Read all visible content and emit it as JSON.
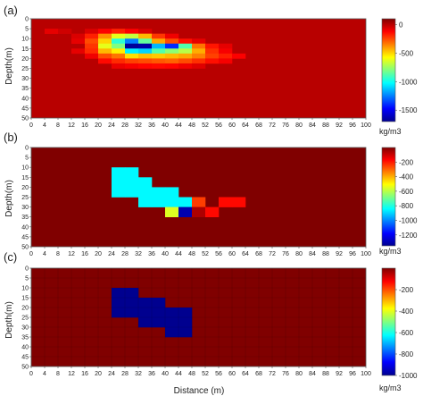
{
  "chart_data": [
    {
      "type": "heatmap",
      "panel_label": "(a)",
      "ylabel": "Depth(m)",
      "xlabel": "",
      "x_ticks": [
        "0",
        "4",
        "8",
        "12",
        "16",
        "20",
        "24",
        "28",
        "32",
        "36",
        "40",
        "44",
        "48",
        "52",
        "56",
        "60",
        "64",
        "68",
        "72",
        "76",
        "80",
        "84",
        "88",
        "92",
        "96",
        "100"
      ],
      "y_ticks": [
        "0",
        "5",
        "10",
        "15",
        "20",
        "25",
        "30",
        "35",
        "40",
        "45",
        "50"
      ],
      "xlim": [
        0,
        100
      ],
      "ylim": [
        0,
        50
      ],
      "y_inverted": true,
      "cell_size": [
        4,
        2.5
      ],
      "background_value": 0,
      "colorbar": {
        "range": [
          -1700,
          100
        ],
        "ticks": [
          "0",
          "-500",
          "-1000",
          "-1500"
        ],
        "unit": "kg/m3"
      },
      "cells": [
        {
          "x": 4,
          "y": 5,
          "v": -80
        },
        {
          "x": 8,
          "y": 5,
          "v": -40
        },
        {
          "x": 16,
          "y": 5,
          "v": -60
        },
        {
          "x": 20,
          "y": 5,
          "v": -120
        },
        {
          "x": 24,
          "y": 5,
          "v": -180
        },
        {
          "x": 28,
          "y": 5,
          "v": -120
        },
        {
          "x": 32,
          "y": 5,
          "v": -60
        },
        {
          "x": 12,
          "y": 7.5,
          "v": -60
        },
        {
          "x": 16,
          "y": 7.5,
          "v": -180
        },
        {
          "x": 20,
          "y": 7.5,
          "v": -380
        },
        {
          "x": 24,
          "y": 7.5,
          "v": -620
        },
        {
          "x": 28,
          "y": 7.5,
          "v": -680
        },
        {
          "x": 32,
          "y": 7.5,
          "v": -450
        },
        {
          "x": 36,
          "y": 7.5,
          "v": -220
        },
        {
          "x": 40,
          "y": 7.5,
          "v": -100
        },
        {
          "x": 12,
          "y": 10,
          "v": -80
        },
        {
          "x": 16,
          "y": 10,
          "v": -260
        },
        {
          "x": 20,
          "y": 10,
          "v": -500
        },
        {
          "x": 24,
          "y": 10,
          "v": -950
        },
        {
          "x": 28,
          "y": 10,
          "v": -1250
        },
        {
          "x": 32,
          "y": 10,
          "v": -850
        },
        {
          "x": 36,
          "y": 10,
          "v": -420
        },
        {
          "x": 40,
          "y": 10,
          "v": -260
        },
        {
          "x": 44,
          "y": 10,
          "v": -150
        },
        {
          "x": 48,
          "y": 10,
          "v": -80
        },
        {
          "x": 16,
          "y": 12.5,
          "v": -220
        },
        {
          "x": 20,
          "y": 12.5,
          "v": -620
        },
        {
          "x": 24,
          "y": 12.5,
          "v": -800
        },
        {
          "x": 28,
          "y": 12.5,
          "v": -1680
        },
        {
          "x": 32,
          "y": 12.5,
          "v": -1650
        },
        {
          "x": 36,
          "y": 12.5,
          "v": -1150
        },
        {
          "x": 40,
          "y": 12.5,
          "v": -1400
        },
        {
          "x": 44,
          "y": 12.5,
          "v": -880
        },
        {
          "x": 48,
          "y": 12.5,
          "v": -330
        },
        {
          "x": 52,
          "y": 12.5,
          "v": -160
        },
        {
          "x": 56,
          "y": 12.5,
          "v": -80
        },
        {
          "x": 12,
          "y": 15,
          "v": -80
        },
        {
          "x": 16,
          "y": 15,
          "v": -200
        },
        {
          "x": 20,
          "y": 15,
          "v": -450
        },
        {
          "x": 24,
          "y": 15,
          "v": -550
        },
        {
          "x": 28,
          "y": 15,
          "v": -1050
        },
        {
          "x": 32,
          "y": 15,
          "v": -1100
        },
        {
          "x": 36,
          "y": 15,
          "v": -880
        },
        {
          "x": 40,
          "y": 15,
          "v": -780
        },
        {
          "x": 44,
          "y": 15,
          "v": -700
        },
        {
          "x": 48,
          "y": 15,
          "v": -430
        },
        {
          "x": 52,
          "y": 15,
          "v": -210
        },
        {
          "x": 56,
          "y": 15,
          "v": -110
        },
        {
          "x": 16,
          "y": 17.5,
          "v": -100
        },
        {
          "x": 20,
          "y": 17.5,
          "v": -260
        },
        {
          "x": 24,
          "y": 17.5,
          "v": -330
        },
        {
          "x": 28,
          "y": 17.5,
          "v": -520
        },
        {
          "x": 32,
          "y": 17.5,
          "v": -460
        },
        {
          "x": 36,
          "y": 17.5,
          "v": -480
        },
        {
          "x": 40,
          "y": 17.5,
          "v": -450
        },
        {
          "x": 44,
          "y": 17.5,
          "v": -420
        },
        {
          "x": 48,
          "y": 17.5,
          "v": -350
        },
        {
          "x": 52,
          "y": 17.5,
          "v": -240
        },
        {
          "x": 56,
          "y": 17.5,
          "v": -180
        },
        {
          "x": 60,
          "y": 17.5,
          "v": -120
        },
        {
          "x": 20,
          "y": 20,
          "v": -140
        },
        {
          "x": 24,
          "y": 20,
          "v": -200
        },
        {
          "x": 28,
          "y": 20,
          "v": -240
        },
        {
          "x": 32,
          "y": 20,
          "v": -260
        },
        {
          "x": 36,
          "y": 20,
          "v": -280
        },
        {
          "x": 40,
          "y": 20,
          "v": -300
        },
        {
          "x": 44,
          "y": 20,
          "v": -260
        },
        {
          "x": 48,
          "y": 20,
          "v": -210
        },
        {
          "x": 52,
          "y": 20,
          "v": -150
        },
        {
          "x": 56,
          "y": 20,
          "v": -110
        },
        {
          "x": 24,
          "y": 22.5,
          "v": -90
        },
        {
          "x": 28,
          "y": 22.5,
          "v": -110
        },
        {
          "x": 32,
          "y": 22.5,
          "v": -130
        },
        {
          "x": 36,
          "y": 22.5,
          "v": -140
        },
        {
          "x": 40,
          "y": 22.5,
          "v": -130
        },
        {
          "x": 44,
          "y": 22.5,
          "v": -100
        },
        {
          "x": 48,
          "y": 22.5,
          "v": -70
        }
      ]
    },
    {
      "type": "heatmap",
      "panel_label": "(b)",
      "ylabel": "Depth(m)",
      "xlabel": "",
      "x_ticks": [
        "0",
        "4",
        "8",
        "12",
        "16",
        "20",
        "24",
        "28",
        "32",
        "36",
        "40",
        "44",
        "48",
        "52",
        "56",
        "60",
        "64",
        "68",
        "72",
        "76",
        "80",
        "84",
        "88",
        "92",
        "96",
        "100"
      ],
      "y_ticks": [
        "0",
        "5",
        "10",
        "15",
        "20",
        "25",
        "30",
        "35",
        "40",
        "45",
        "50"
      ],
      "xlim": [
        0,
        100
      ],
      "ylim": [
        0,
        50
      ],
      "y_inverted": true,
      "cell_size": [
        4,
        5
      ],
      "background_value": 0,
      "colorbar": {
        "range": [
          -1350,
          0
        ],
        "ticks": [
          "-200",
          "-400",
          "-600",
          "-800",
          "-1000",
          "-1200"
        ],
        "unit": "kg/m3"
      },
      "cells": [
        {
          "x": 24,
          "y": 10,
          "v": -850
        },
        {
          "x": 28,
          "y": 10,
          "v": -850
        },
        {
          "x": 24,
          "y": 15,
          "v": -850
        },
        {
          "x": 28,
          "y": 15,
          "v": -850
        },
        {
          "x": 32,
          "y": 15,
          "v": -850
        },
        {
          "x": 24,
          "y": 20,
          "v": -850
        },
        {
          "x": 28,
          "y": 20,
          "v": -850
        },
        {
          "x": 32,
          "y": 20,
          "v": -850
        },
        {
          "x": 36,
          "y": 20,
          "v": -850
        },
        {
          "x": 40,
          "y": 20,
          "v": -850
        },
        {
          "x": 32,
          "y": 25,
          "v": -850
        },
        {
          "x": 36,
          "y": 25,
          "v": -850
        },
        {
          "x": 40,
          "y": 25,
          "v": -850
        },
        {
          "x": 44,
          "y": 25,
          "v": -850
        },
        {
          "x": 48,
          "y": 25,
          "v": -250
        },
        {
          "x": 56,
          "y": 25,
          "v": -180
        },
        {
          "x": 60,
          "y": 25,
          "v": -180
        },
        {
          "x": 40,
          "y": 30,
          "v": -550
        },
        {
          "x": 44,
          "y": 30,
          "v": -1300
        },
        {
          "x": 48,
          "y": 30,
          "v": -60
        },
        {
          "x": 52,
          "y": 30,
          "v": -180
        }
      ]
    },
    {
      "type": "heatmap",
      "panel_label": "(c)",
      "ylabel": "Depth(m)",
      "xlabel": "Distance (m)",
      "x_ticks": [
        "0",
        "4",
        "8",
        "12",
        "16",
        "20",
        "24",
        "28",
        "32",
        "36",
        "40",
        "44",
        "48",
        "52",
        "56",
        "60",
        "64",
        "68",
        "72",
        "76",
        "80",
        "84",
        "88",
        "92",
        "96",
        "100"
      ],
      "y_ticks": [
        "0",
        "5",
        "10",
        "15",
        "20",
        "25",
        "30",
        "35",
        "40",
        "45",
        "50"
      ],
      "xlim": [
        0,
        100
      ],
      "ylim": [
        0,
        50
      ],
      "y_inverted": true,
      "cell_size": [
        4,
        5
      ],
      "background_value": 0,
      "grid": true,
      "colorbar": {
        "range": [
          -1000,
          0
        ],
        "ticks": [
          "-200",
          "-400",
          "-600",
          "-800",
          "-1000"
        ],
        "unit": "kg/m3"
      },
      "cells": [
        {
          "x": 24,
          "y": 10,
          "v": -1000
        },
        {
          "x": 28,
          "y": 10,
          "v": -1000
        },
        {
          "x": 24,
          "y": 15,
          "v": -1000
        },
        {
          "x": 28,
          "y": 15,
          "v": -1000
        },
        {
          "x": 32,
          "y": 15,
          "v": -1000
        },
        {
          "x": 36,
          "y": 15,
          "v": -1000
        },
        {
          "x": 24,
          "y": 20,
          "v": -1000
        },
        {
          "x": 28,
          "y": 20,
          "v": -1000
        },
        {
          "x": 32,
          "y": 20,
          "v": -1000
        },
        {
          "x": 36,
          "y": 20,
          "v": -1000
        },
        {
          "x": 40,
          "y": 20,
          "v": -1000
        },
        {
          "x": 44,
          "y": 20,
          "v": -1000
        },
        {
          "x": 32,
          "y": 25,
          "v": -1000
        },
        {
          "x": 36,
          "y": 25,
          "v": -1000
        },
        {
          "x": 40,
          "y": 25,
          "v": -1000
        },
        {
          "x": 44,
          "y": 25,
          "v": -1000
        },
        {
          "x": 40,
          "y": 30,
          "v": -1000
        },
        {
          "x": 44,
          "y": 30,
          "v": -1000
        }
      ]
    }
  ]
}
